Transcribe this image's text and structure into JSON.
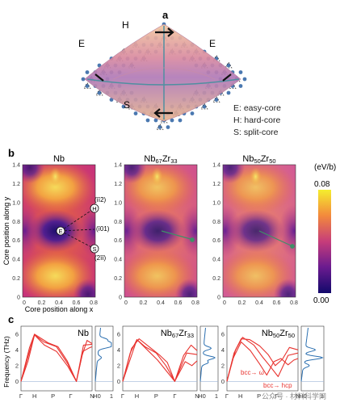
{
  "panel_a": {
    "label": "a",
    "core_labels": {
      "easy_left": "E",
      "easy_right": "E",
      "hard": "H",
      "split": "S"
    },
    "legend": [
      "E: easy-core",
      "H: hard-core",
      "S: split-core"
    ]
  },
  "panel_b": {
    "label": "b",
    "maps": [
      {
        "title_base": "Nb",
        "title_sub1": "",
        "title_mid": "",
        "title_sub2": ""
      },
      {
        "title_base": "Nb",
        "title_sub1": "67",
        "title_mid": "Zr",
        "title_sub2": "33"
      },
      {
        "title_base": "Nb",
        "title_sub1": "50",
        "title_mid": "Zr",
        "title_sub2": "50"
      }
    ],
    "ylabel": "Core position along y",
    "xlabel": "Core position along x",
    "yticks": [
      "1.4",
      "1.2",
      "1.0",
      "0.8",
      "0.6",
      "0.4",
      "0.2",
      "0"
    ],
    "xticks": [
      "0",
      "0.2",
      "0.4",
      "0.6",
      "0.8"
    ],
    "annotations": {
      "H": "H",
      "E": "E",
      "S": "S",
      "dir_112": "(īī2)",
      "dir_101": "(ī01)",
      "dir_211": "(2īī)"
    },
    "colorbar": {
      "unit": "(eV/b)",
      "max": "0.08",
      "min": "0.00"
    }
  },
  "panel_c": {
    "label": "c",
    "ylabel": "Frequency (THz)",
    "yticks": [
      "6",
      "4",
      "2",
      "0"
    ],
    "plots": [
      {
        "title_base": "Nb",
        "title_sub1": "",
        "title_mid": "",
        "title_sub2": "",
        "xticks": [
          "Γ",
          "H",
          "P",
          "Γ",
          "N"
        ],
        "dos_ticks": [
          "H0",
          "1"
        ]
      },
      {
        "title_base": "Nb",
        "title_sub1": "67",
        "title_mid": "Zr",
        "title_sub2": "33",
        "xticks": [
          "Γ",
          "H",
          "P",
          "Γ",
          "N"
        ],
        "dos_ticks": [
          "H0",
          "1"
        ]
      },
      {
        "title_base": "Nb",
        "title_sub1": "50",
        "title_mid": "Zr",
        "title_sub2": "50",
        "xticks": [
          "Γ",
          "H",
          "P",
          "Γ",
          "N"
        ],
        "dos_ticks": [
          "H0",
          "1"
        ]
      }
    ],
    "annotations": {
      "bcc_omega": "bcc→ ω",
      "bcc_hcp": "bcc→  hcp"
    }
  },
  "watermark": "公众号 · 材料科学网",
  "colors": {
    "phonon": "#e8332f",
    "dos": "#2b6fb0",
    "zero_line": "#9fb6d8"
  }
}
